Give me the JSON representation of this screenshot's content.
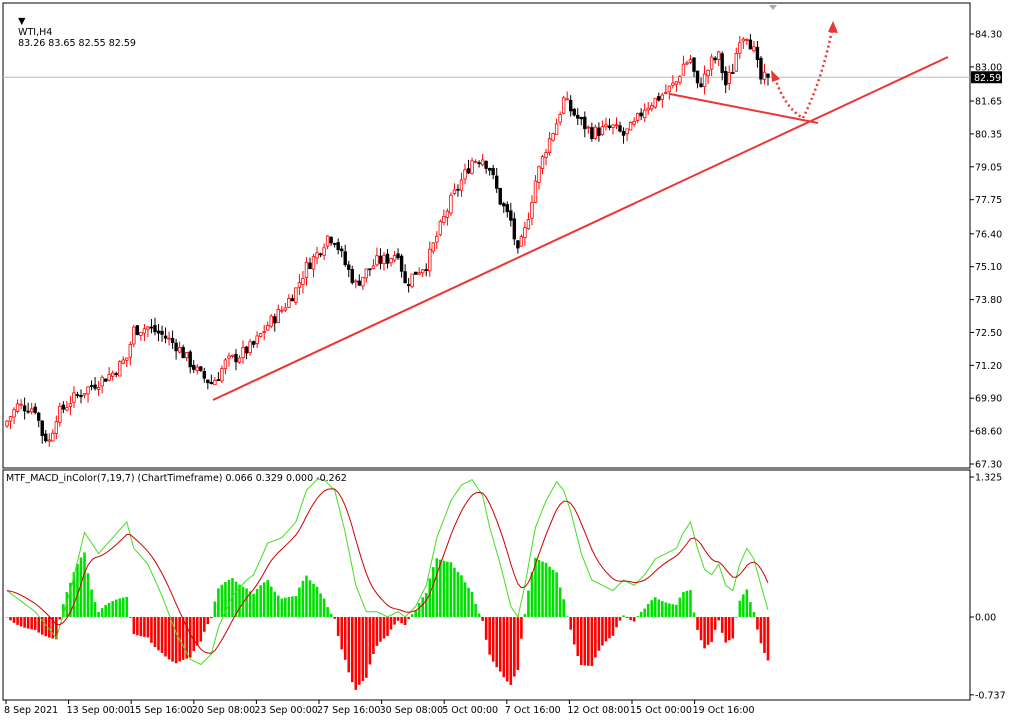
{
  "header": {
    "symbol": "WTI,H4",
    "ohlc": "83.26 83.65 82.55 82.59"
  },
  "indicator": {
    "label": "MTF_MACD_inColor(7,19,7) (ChartTimeframe) 0.066 0.329 0.000 -0.262"
  },
  "price_axis": {
    "ticks": [
      "84.30",
      "83.00",
      "81.65",
      "80.35",
      "79.05",
      "77.75",
      "76.40",
      "75.10",
      "73.80",
      "72.50",
      "71.20",
      "69.90",
      "68.60",
      "67.30"
    ],
    "current_price": "82.59"
  },
  "macd_axis": {
    "ticks": [
      "1.325",
      "0.00",
      "-0.737"
    ]
  },
  "time_axis": {
    "labels": [
      "8 Sep 2021",
      "13 Sep 00:00",
      "15 Sep 16:00",
      "20 Sep 08:00",
      "23 Sep 00:00",
      "27 Sep 16:00",
      "30 Sep 08:00",
      "5 Oct 00:00",
      "7 Oct 16:00",
      "12 Oct 08:00",
      "15 Oct 00:00",
      "19 Oct 16:00"
    ]
  },
  "colors": {
    "bull": "#ff0000",
    "bear": "#000000",
    "macd_pos": "#00e000",
    "macd_neg": "#ff0000",
    "signal_line": "#cc0000",
    "macd_line": "#44dd22",
    "trendline": "#ee3333"
  },
  "chart_data": {
    "type": "candlestick",
    "symbol": "WTI",
    "timeframe": "H4",
    "ylim": [
      67.3,
      85.0
    ],
    "anchor_closes": [
      [
        0,
        69.0
      ],
      [
        3,
        69.6
      ],
      [
        8,
        69.5
      ],
      [
        10,
        68.5
      ],
      [
        12,
        68.2
      ],
      [
        14,
        69.2
      ],
      [
        18,
        69.8
      ],
      [
        24,
        70.4
      ],
      [
        30,
        70.9
      ],
      [
        34,
        71.5
      ],
      [
        36,
        72.6
      ],
      [
        40,
        72.7
      ],
      [
        44,
        72.4
      ],
      [
        48,
        72.0
      ],
      [
        52,
        71.3
      ],
      [
        55,
        70.8
      ],
      [
        58,
        70.5
      ],
      [
        60,
        70.8
      ],
      [
        62,
        71.3
      ],
      [
        66,
        71.6
      ],
      [
        70,
        72.0
      ],
      [
        74,
        72.8
      ],
      [
        78,
        73.4
      ],
      [
        82,
        74.2
      ],
      [
        85,
        75.1
      ],
      [
        88,
        75.6
      ],
      [
        91,
        76.3
      ],
      [
        93,
        76.2
      ],
      [
        96,
        75.2
      ],
      [
        99,
        74.4
      ],
      [
        102,
        74.9
      ],
      [
        105,
        75.3
      ],
      [
        108,
        75.4
      ],
      [
        111,
        75.7
      ],
      [
        113,
        74.4
      ],
      [
        116,
        74.9
      ],
      [
        119,
        75.2
      ],
      [
        122,
        76.3
      ],
      [
        126,
        77.7
      ],
      [
        129,
        78.5
      ],
      [
        132,
        79.3
      ],
      [
        135,
        79.4
      ],
      [
        137,
        79.0
      ],
      [
        140,
        77.7
      ],
      [
        143,
        76.9
      ],
      [
        145,
        75.6
      ],
      [
        147,
        76.5
      ],
      [
        150,
        78.5
      ],
      [
        153,
        79.8
      ],
      [
        156,
        80.8
      ],
      [
        158,
        81.7
      ],
      [
        160,
        81.3
      ],
      [
        163,
        80.8
      ],
      [
        166,
        80.4
      ],
      [
        169,
        80.5
      ],
      [
        172,
        80.6
      ],
      [
        175,
        80.3
      ],
      [
        178,
        80.7
      ],
      [
        181,
        81.4
      ],
      [
        184,
        81.7
      ],
      [
        187,
        82.0
      ],
      [
        190,
        82.4
      ],
      [
        192,
        83.1
      ],
      [
        194,
        83.3
      ],
      [
        196,
        82.2
      ],
      [
        198,
        82.6
      ],
      [
        200,
        83.2
      ],
      [
        202,
        83.4
      ],
      [
        204,
        82.3
      ],
      [
        206,
        82.9
      ],
      [
        208,
        84.2
      ],
      [
        210,
        84.3
      ],
      [
        212,
        83.6
      ],
      [
        214,
        82.5
      ],
      [
        216,
        82.59
      ]
    ],
    "macd_anchors": [
      [
        0,
        0.25
      ],
      [
        8,
        0.05
      ],
      [
        14,
        -0.2
      ],
      [
        18,
        0.25
      ],
      [
        22,
        0.8
      ],
      [
        26,
        0.6
      ],
      [
        30,
        0.75
      ],
      [
        34,
        0.9
      ],
      [
        36,
        0.65
      ],
      [
        40,
        0.5
      ],
      [
        44,
        0.2
      ],
      [
        48,
        -0.15
      ],
      [
        52,
        -0.4
      ],
      [
        55,
        -0.45
      ],
      [
        58,
        -0.35
      ],
      [
        60,
        -0.1
      ],
      [
        64,
        0.2
      ],
      [
        68,
        0.35
      ],
      [
        70,
        0.4
      ],
      [
        74,
        0.7
      ],
      [
        78,
        0.75
      ],
      [
        82,
        0.9
      ],
      [
        85,
        1.2
      ],
      [
        88,
        1.3
      ],
      [
        90,
        1.3
      ],
      [
        93,
        1.2
      ],
      [
        96,
        0.8
      ],
      [
        99,
        0.3
      ],
      [
        102,
        0.05
      ],
      [
        105,
        0.05
      ],
      [
        108,
        0.0
      ],
      [
        111,
        0.05
      ],
      [
        113,
        0.0
      ],
      [
        116,
        0.1
      ],
      [
        119,
        0.3
      ],
      [
        122,
        0.75
      ],
      [
        126,
        1.1
      ],
      [
        129,
        1.25
      ],
      [
        132,
        1.3
      ],
      [
        135,
        1.15
      ],
      [
        137,
        0.85
      ],
      [
        140,
        0.5
      ],
      [
        143,
        0.1
      ],
      [
        145,
        0.0
      ],
      [
        147,
        0.3
      ],
      [
        150,
        0.85
      ],
      [
        153,
        1.1
      ],
      [
        156,
        1.28
      ],
      [
        158,
        1.2
      ],
      [
        160,
        1.0
      ],
      [
        163,
        0.6
      ],
      [
        166,
        0.35
      ],
      [
        169,
        0.3
      ],
      [
        172,
        0.25
      ],
      [
        175,
        0.35
      ],
      [
        178,
        0.3
      ],
      [
        181,
        0.4
      ],
      [
        184,
        0.55
      ],
      [
        187,
        0.6
      ],
      [
        190,
        0.65
      ],
      [
        192,
        0.8
      ],
      [
        194,
        0.9
      ],
      [
        196,
        0.65
      ],
      [
        198,
        0.45
      ],
      [
        200,
        0.4
      ],
      [
        202,
        0.5
      ],
      [
        204,
        0.3
      ],
      [
        206,
        0.25
      ],
      [
        208,
        0.5
      ],
      [
        210,
        0.65
      ],
      [
        212,
        0.55
      ],
      [
        214,
        0.3
      ],
      [
        216,
        0.066
      ]
    ],
    "macd_ylim": [
      -0.737,
      1.325
    ],
    "current_price": 82.59,
    "macd_last": {
      "macd": 0.066,
      "signal": 0.329,
      "histogram": 0.0,
      "value4": -0.262
    }
  }
}
